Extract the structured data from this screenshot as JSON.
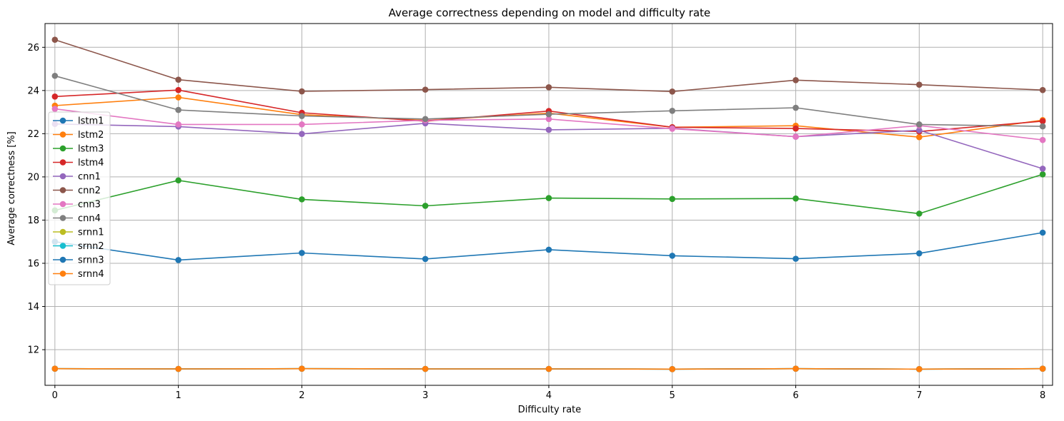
{
  "chart_data": {
    "type": "line",
    "title": "Average correctness depending on model and difficulty rate",
    "xlabel": "Difficulty rate",
    "ylabel": "Average correctness [%]",
    "x": [
      0,
      1,
      2,
      3,
      4,
      5,
      6,
      7,
      8
    ],
    "xlim": [
      -0.08,
      8.08
    ],
    "ylim": [
      10.35,
      27.1
    ],
    "xticks": [
      0,
      1,
      2,
      3,
      4,
      5,
      6,
      7,
      8
    ],
    "yticks": [
      12,
      14,
      16,
      18,
      20,
      22,
      24,
      26
    ],
    "grid": true,
    "legend_position": "center-left",
    "series": [
      {
        "name": "lstm1",
        "color": "#1f77b4",
        "values": [
          17.0,
          16.15,
          16.48,
          16.2,
          16.63,
          16.35,
          16.21,
          16.46,
          17.42
        ]
      },
      {
        "name": "lstm2",
        "color": "#ff7f0e",
        "values": [
          23.3,
          23.68,
          22.88,
          22.62,
          22.95,
          22.3,
          22.37,
          21.84,
          22.63
        ]
      },
      {
        "name": "lstm3",
        "color": "#2ca02c",
        "values": [
          18.45,
          19.84,
          18.96,
          18.66,
          19.02,
          18.98,
          19.0,
          18.3,
          20.12
        ]
      },
      {
        "name": "lstm4",
        "color": "#d62728",
        "values": [
          23.72,
          24.02,
          22.97,
          22.58,
          23.05,
          22.3,
          22.24,
          22.1,
          22.58
        ]
      },
      {
        "name": "cnn1",
        "color": "#9467bd",
        "values": [
          22.45,
          22.33,
          21.99,
          22.48,
          22.18,
          22.25,
          21.86,
          22.16,
          20.38
        ]
      },
      {
        "name": "cnn2",
        "color": "#8c564b",
        "values": [
          26.35,
          24.5,
          23.96,
          24.04,
          24.15,
          23.95,
          24.48,
          24.27,
          24.02
        ]
      },
      {
        "name": "cnn3",
        "color": "#e377c2",
        "values": [
          23.15,
          22.43,
          22.43,
          22.62,
          22.68,
          22.23,
          21.86,
          22.38,
          21.71
        ]
      },
      {
        "name": "cnn4",
        "color": "#7f7f7f",
        "values": [
          24.68,
          23.1,
          22.82,
          22.68,
          22.9,
          23.06,
          23.2,
          22.43,
          22.34
        ]
      },
      {
        "name": "srnn1",
        "color": "#bcbd22",
        "values": [
          11.12,
          11.11,
          11.12,
          11.11,
          11.11,
          11.1,
          11.12,
          11.1,
          11.12
        ]
      },
      {
        "name": "srnn2",
        "color": "#17becf",
        "values": [
          11.12,
          11.11,
          11.12,
          11.11,
          11.11,
          11.1,
          11.12,
          11.1,
          11.12
        ]
      },
      {
        "name": "srnn3",
        "color": "#1f77b4",
        "values": [
          11.12,
          11.11,
          11.12,
          11.11,
          11.11,
          11.1,
          11.12,
          11.1,
          11.12
        ]
      },
      {
        "name": "srnn4",
        "color": "#ff7f0e",
        "values": [
          11.12,
          11.11,
          11.12,
          11.11,
          11.11,
          11.1,
          11.12,
          11.1,
          11.12
        ]
      }
    ]
  }
}
